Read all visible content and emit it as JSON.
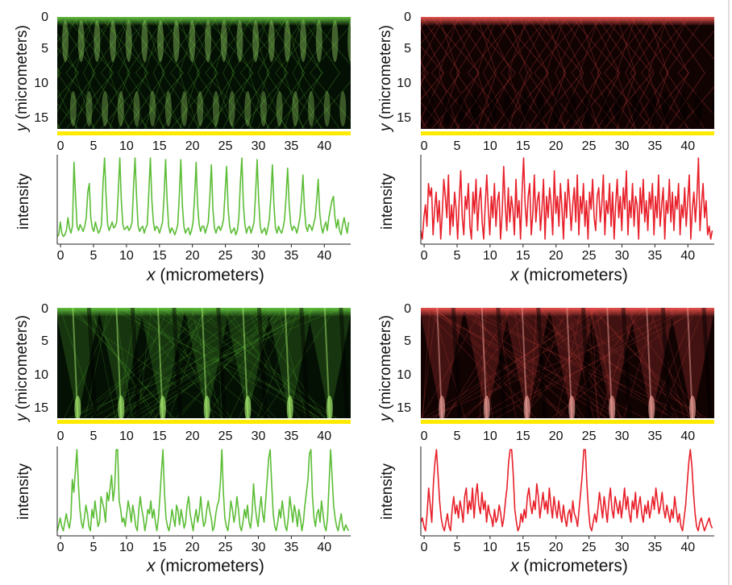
{
  "labels": {
    "y_axis_var": "y",
    "y_axis_unit": "(micrometers)",
    "x_axis_var": "x",
    "x_axis_unit": "(micrometers)",
    "intensity": "intensity"
  },
  "colors": {
    "green": "#5cbd36",
    "red": "#e8202a",
    "strip": "#ffea00"
  },
  "chart_data": [
    {
      "type": "heatmap",
      "panel": "top-left",
      "colormap": "green",
      "pattern": "periodic",
      "x_ticks": [
        0,
        5,
        10,
        15,
        20,
        25,
        30,
        35,
        40
      ],
      "y_ticks": [
        0,
        5,
        10,
        15
      ],
      "xlim": [
        -0.5,
        44
      ],
      "ylim": [
        0,
        17
      ],
      "y_inverted": true,
      "grid": false
    },
    {
      "type": "line",
      "panel": "top-left-profile",
      "color": "green",
      "x_ticks": [
        0,
        5,
        10,
        15,
        20,
        25,
        30,
        35,
        40
      ],
      "xlim": [
        -0.5,
        44
      ],
      "y": [
        0.08,
        0.1,
        0.25,
        0.12,
        0.08,
        0.1,
        0.15,
        0.3,
        0.18,
        0.12,
        0.2,
        0.95,
        0.55,
        0.2,
        0.15,
        0.22,
        0.18,
        0.14,
        0.2,
        0.3,
        0.6,
        0.7,
        0.3,
        0.18,
        0.14,
        0.25,
        0.18,
        0.12,
        0.15,
        0.22,
        0.7,
        1.0,
        0.55,
        0.22,
        0.15,
        0.2,
        0.25,
        0.18,
        0.2,
        0.25,
        0.6,
        1.0,
        0.5,
        0.22,
        0.16,
        0.18,
        0.2,
        0.15,
        0.18,
        0.25,
        0.65,
        1.0,
        0.55,
        0.2,
        0.14,
        0.18,
        0.2,
        0.12,
        0.18,
        0.22,
        0.6,
        1.0,
        0.5,
        0.25,
        0.15,
        0.2,
        0.18,
        0.12,
        0.18,
        0.25,
        0.55,
        0.98,
        0.5,
        0.2,
        0.12,
        0.18,
        0.15,
        0.1,
        0.15,
        0.22,
        0.55,
        0.98,
        0.45,
        0.2,
        0.12,
        0.16,
        0.18,
        0.1,
        0.15,
        0.25,
        0.55,
        0.95,
        0.45,
        0.22,
        0.14,
        0.2,
        0.2,
        0.12,
        0.18,
        0.25,
        0.55,
        0.92,
        0.4,
        0.18,
        0.12,
        0.18,
        0.2,
        0.15,
        0.2,
        0.28,
        0.6,
        0.9,
        0.4,
        0.2,
        0.12,
        0.15,
        0.18,
        0.1,
        0.15,
        0.3,
        0.7,
        1.0,
        0.45,
        0.22,
        0.12,
        0.18,
        0.2,
        0.12,
        0.18,
        0.25,
        0.6,
        0.98,
        0.5,
        0.2,
        0.12,
        0.15,
        0.18,
        0.1,
        0.18,
        0.28,
        0.55,
        0.92,
        0.45,
        0.18,
        0.12,
        0.2,
        0.15,
        0.12,
        0.18,
        0.28,
        0.55,
        0.88,
        0.45,
        0.22,
        0.15,
        0.2,
        0.18,
        0.12,
        0.2,
        0.3,
        0.5,
        0.8,
        0.4,
        0.2,
        0.14,
        0.22,
        0.2,
        0.15,
        0.22,
        0.3,
        0.5,
        0.75,
        0.35,
        0.2,
        0.12,
        0.2,
        0.25,
        0.15,
        0.3,
        0.4,
        0.5,
        0.55,
        0.3,
        0.18,
        0.28,
        0.15,
        0.1,
        0.22,
        0.3,
        0.2,
        0.12,
        0.25
      ]
    },
    {
      "type": "heatmap",
      "panel": "top-right",
      "colormap": "red",
      "pattern": "disordered",
      "x_ticks": [
        0,
        5,
        10,
        15,
        20,
        25,
        30,
        35,
        40
      ],
      "y_ticks": [
        0,
        5,
        10,
        15
      ],
      "xlim": [
        -0.5,
        44
      ],
      "ylim": [
        0,
        17
      ],
      "y_inverted": true,
      "grid": false
    },
    {
      "type": "line",
      "panel": "top-right-profile",
      "color": "red",
      "x_ticks": [
        0,
        5,
        10,
        15,
        20,
        25,
        30,
        35,
        40
      ],
      "xlim": [
        -0.5,
        44
      ],
      "y": [
        0.15,
        0.05,
        0.3,
        0.45,
        0.2,
        0.7,
        0.55,
        0.65,
        0.1,
        0.4,
        0.6,
        0.25,
        0.5,
        0.05,
        0.35,
        0.75,
        0.55,
        0.3,
        0.8,
        0.1,
        0.45,
        0.2,
        0.6,
        0.4,
        0.05,
        0.5,
        0.85,
        0.3,
        0.1,
        0.55,
        0.4,
        0.7,
        0.2,
        0.05,
        0.6,
        0.35,
        0.75,
        0.15,
        0.5,
        0.65,
        0.25,
        0.05,
        0.45,
        0.8,
        0.4,
        0.1,
        0.55,
        0.3,
        0.7,
        0.2,
        0.5,
        0.6,
        0.05,
        0.35,
        0.9,
        0.45,
        0.15,
        0.65,
        0.25,
        0.55,
        0.4,
        0.1,
        0.75,
        0.3,
        0.5,
        0.05,
        0.6,
        1.0,
        0.45,
        0.2,
        0.55,
        0.7,
        0.1,
        0.35,
        0.8,
        0.25,
        0.5,
        0.6,
        0.15,
        0.4,
        0.75,
        0.05,
        0.55,
        0.3,
        0.65,
        0.45,
        0.1,
        0.85,
        0.35,
        0.55,
        0.2,
        0.7,
        0.4,
        0.05,
        0.6,
        0.3,
        0.75,
        0.5,
        0.15,
        0.45,
        0.65,
        0.25,
        0.8,
        0.1,
        0.55,
        0.35,
        0.7,
        0.2,
        0.5,
        0.05,
        0.6,
        0.4,
        0.75,
        0.3,
        0.15,
        0.55,
        0.65,
        0.25,
        0.45,
        0.8,
        0.1,
        0.5,
        0.35,
        0.7,
        0.2,
        0.6,
        0.05,
        0.45,
        0.75,
        0.3,
        0.55,
        0.15,
        0.65,
        0.4,
        0.85,
        0.1,
        0.5,
        0.3,
        0.7,
        0.2,
        0.55,
        0.45,
        0.05,
        0.65,
        0.35,
        0.75,
        0.25,
        0.5,
        0.15,
        0.6,
        0.4,
        0.7,
        0.1,
        0.55,
        0.3,
        0.8,
        0.2,
        0.45,
        0.65,
        0.05,
        0.5,
        0.35,
        0.75,
        0.25,
        0.6,
        0.15,
        0.55,
        0.4,
        0.7,
        0.1,
        0.45,
        0.3,
        0.65,
        0.2,
        0.5,
        0.8,
        0.05,
        0.4,
        0.6,
        0.25,
        0.55,
        1.0,
        0.15,
        0.45,
        0.7,
        0.3,
        0.5,
        0.1,
        0.2,
        0.05,
        0.15
      ]
    },
    {
      "type": "heatmap",
      "panel": "bottom-left",
      "colormap": "green",
      "pattern": "focusing",
      "x_ticks": [
        0,
        5,
        10,
        15,
        20,
        25,
        30,
        35,
        40
      ],
      "y_ticks": [
        0,
        5,
        10,
        15
      ],
      "xlim": [
        -0.5,
        44
      ],
      "ylim": [
        0,
        17
      ],
      "y_inverted": true,
      "grid": false
    },
    {
      "type": "line",
      "panel": "bottom-left-profile",
      "color": "green",
      "x_ticks": [
        0,
        5,
        10,
        15,
        20,
        25,
        30,
        35,
        40
      ],
      "xlim": [
        -0.5,
        44
      ],
      "y": [
        0.05,
        0.12,
        0.2,
        0.1,
        0.05,
        0.15,
        0.25,
        0.15,
        0.08,
        0.2,
        0.65,
        0.5,
        0.75,
        1.0,
        0.6,
        0.3,
        0.15,
        0.08,
        0.2,
        0.35,
        0.25,
        0.1,
        0.05,
        0.3,
        0.2,
        0.4,
        0.25,
        0.1,
        0.15,
        0.45,
        0.38,
        0.3,
        0.15,
        0.5,
        0.4,
        0.55,
        0.7,
        0.4,
        0.55,
        1.0,
        1.0,
        0.4,
        0.3,
        0.15,
        0.2,
        0.1,
        0.25,
        0.4,
        0.3,
        0.15,
        0.35,
        0.25,
        0.1,
        0.05,
        0.3,
        0.45,
        0.3,
        0.2,
        0.05,
        0.15,
        0.3,
        0.25,
        0.4,
        0.2,
        0.3,
        0.15,
        0.05,
        0.2,
        0.45,
        0.75,
        1.0,
        0.5,
        0.2,
        0.1,
        0.05,
        0.15,
        0.3,
        0.2,
        0.1,
        0.35,
        0.28,
        0.12,
        0.3,
        0.2,
        0.08,
        0.15,
        0.35,
        0.45,
        0.25,
        0.15,
        0.05,
        0.2,
        0.3,
        0.15,
        0.25,
        0.45,
        0.25,
        0.1,
        0.15,
        0.3,
        0.4,
        0.28,
        0.2,
        0.05,
        0.1,
        0.25,
        0.35,
        0.4,
        0.6,
        1.0,
        0.5,
        0.2,
        0.1,
        0.05,
        0.2,
        0.4,
        0.3,
        0.15,
        0.25,
        0.45,
        0.3,
        0.1,
        0.05,
        0.15,
        0.3,
        0.2,
        0.35,
        0.15,
        0.08,
        0.25,
        0.6,
        0.35,
        0.2,
        0.1,
        0.3,
        0.45,
        0.25,
        0.15,
        0.4,
        0.65,
        0.9,
        1.0,
        0.6,
        0.25,
        0.1,
        0.05,
        0.15,
        0.3,
        0.2,
        0.4,
        0.25,
        0.1,
        0.05,
        0.2,
        0.45,
        0.3,
        0.15,
        0.35,
        0.25,
        0.1,
        0.3,
        0.2,
        0.05,
        0.15,
        0.35,
        0.5,
        0.65,
        0.95,
        1.0,
        0.45,
        0.2,
        0.1,
        0.25,
        0.3,
        0.15,
        0.4,
        0.25,
        0.1,
        0.05,
        0.2,
        0.6,
        1.0,
        0.7,
        0.35,
        0.2,
        0.1,
        0.05,
        0.15,
        0.25,
        0.1,
        0.05,
        0.12,
        0.08,
        0.05
      ]
    },
    {
      "type": "heatmap",
      "panel": "bottom-right",
      "colormap": "red",
      "pattern": "focusing-disordered",
      "x_ticks": [
        0,
        5,
        10,
        15,
        20,
        25,
        30,
        35,
        40
      ],
      "y_ticks": [
        0,
        5,
        10,
        15
      ],
      "xlim": [
        -0.5,
        44
      ],
      "ylim": [
        0,
        17
      ],
      "y_inverted": true,
      "grid": false
    },
    {
      "type": "line",
      "panel": "bottom-right-profile",
      "color": "red",
      "x_ticks": [
        0,
        5,
        10,
        15,
        20,
        25,
        30,
        35,
        40
      ],
      "xlim": [
        -0.5,
        44
      ],
      "y": [
        0.15,
        0.2,
        0.1,
        0.05,
        0.25,
        0.55,
        0.35,
        0.15,
        0.6,
        0.85,
        1.0,
        0.7,
        0.4,
        0.2,
        0.1,
        0.05,
        0.15,
        0.25,
        0.1,
        0.05,
        0.3,
        0.45,
        0.25,
        0.35,
        0.2,
        0.4,
        0.3,
        0.15,
        0.45,
        0.55,
        0.25,
        0.4,
        0.3,
        0.55,
        0.2,
        0.45,
        0.6,
        0.35,
        0.25,
        0.5,
        0.3,
        0.4,
        0.15,
        0.35,
        0.25,
        0.2,
        0.1,
        0.3,
        0.15,
        0.2,
        0.35,
        0.25,
        0.1,
        0.2,
        0.4,
        0.55,
        0.85,
        1.0,
        1.0,
        0.7,
        0.3,
        0.15,
        0.05,
        0.1,
        0.25,
        0.15,
        0.3,
        0.2,
        0.45,
        0.55,
        0.35,
        0.25,
        0.4,
        0.3,
        0.6,
        0.45,
        0.2,
        0.35,
        0.5,
        0.3,
        0.4,
        0.25,
        0.55,
        0.35,
        0.2,
        0.45,
        0.3,
        0.2,
        0.4,
        0.25,
        0.15,
        0.35,
        0.2,
        0.1,
        0.25,
        0.3,
        0.15,
        0.4,
        0.25,
        0.2,
        0.1,
        0.3,
        0.5,
        0.7,
        1.0,
        1.0,
        0.6,
        0.3,
        0.1,
        0.05,
        0.15,
        0.25,
        0.15,
        0.3,
        0.5,
        0.35,
        0.2,
        0.45,
        0.3,
        0.15,
        0.4,
        0.55,
        0.3,
        0.2,
        0.45,
        0.35,
        0.25,
        0.4,
        0.2,
        0.35,
        0.55,
        0.3,
        0.45,
        0.25,
        0.15,
        0.4,
        0.3,
        0.5,
        0.2,
        0.35,
        0.45,
        0.25,
        0.15,
        0.35,
        0.25,
        0.4,
        0.2,
        0.3,
        0.45,
        0.3,
        0.55,
        0.4,
        0.25,
        0.35,
        0.5,
        0.3,
        0.2,
        0.35,
        0.25,
        0.15,
        0.3,
        0.2,
        0.45,
        0.3,
        0.15,
        0.25,
        0.1,
        0.05,
        0.2,
        0.35,
        0.6,
        0.85,
        1.0,
        0.8,
        0.5,
        0.25,
        0.1,
        0.05,
        0.15,
        0.2,
        0.12,
        0.05,
        0.1,
        0.15,
        0.2,
        0.12,
        0.08
      ]
    }
  ]
}
